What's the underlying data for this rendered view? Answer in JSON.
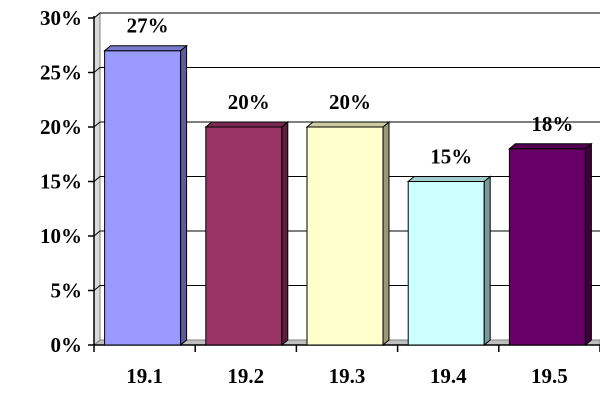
{
  "chart_data": {
    "type": "bar",
    "categories": [
      "19.1",
      "19.2",
      "19.3",
      "19.4",
      "19.5"
    ],
    "values": [
      27,
      20,
      20,
      15,
      18
    ],
    "data_labels": [
      "27%",
      "20%",
      "20%",
      "15%",
      "18%"
    ],
    "y_tick_values": [
      0,
      5,
      10,
      15,
      20,
      25,
      30
    ],
    "y_tick_labels": [
      "0%",
      "5%",
      "10%",
      "15%",
      "20%",
      "25%",
      "30%"
    ],
    "ylim": [
      0,
      30
    ],
    "grid": true,
    "style": "3d",
    "bar_colors": [
      "#9999ff",
      "#993366",
      "#ffffcc",
      "#ccffff",
      "#660066"
    ],
    "title": "",
    "xlabel": "",
    "ylabel": ""
  }
}
